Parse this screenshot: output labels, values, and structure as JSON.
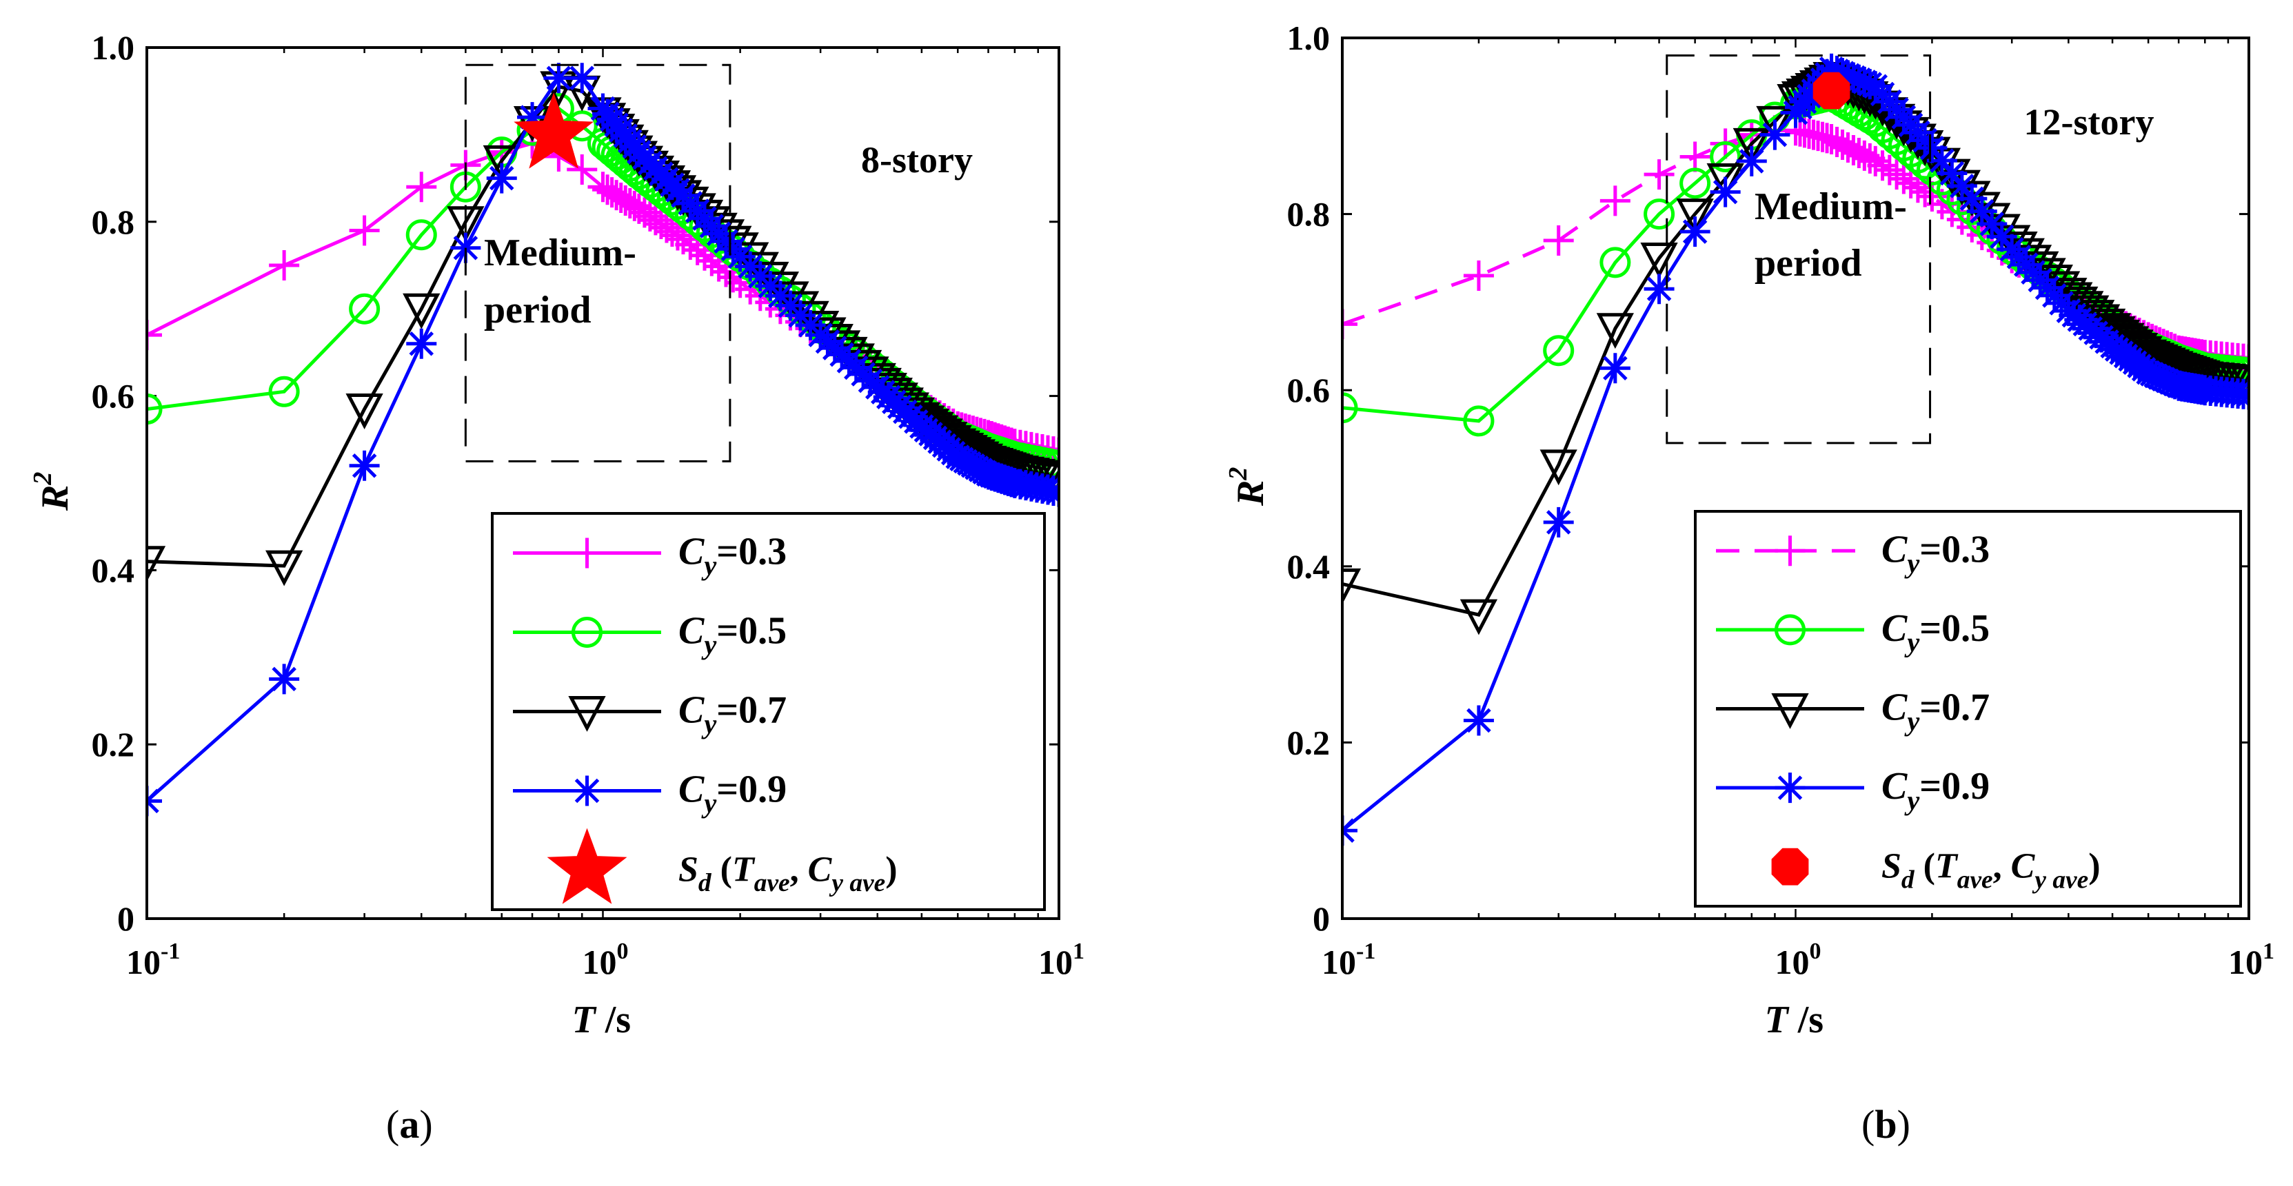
{
  "captions": {
    "a": "a",
    "b": "b"
  },
  "chart_data": [
    {
      "type": "line",
      "panel": "a",
      "annotation": "8-story",
      "region_label_1": "Medium-",
      "region_label_2": "period",
      "region_period_range": [
        0.5,
        1.9
      ],
      "region_r2_range": [
        0.525,
        0.98
      ],
      "xlabel": "T /s",
      "ylabel": "R²",
      "xscale": "log",
      "xlim": [
        0.1,
        10
      ],
      "ylim": [
        0,
        1.0
      ],
      "xticks": [
        0.1,
        1,
        10
      ],
      "yticks": [
        0,
        0.2,
        0.4,
        0.6,
        0.8,
        1.0
      ],
      "ytick_labels": [
        "0",
        "0.2",
        "0.4",
        "0.6",
        "0.8",
        "1.0"
      ],
      "legend_position": "lower-right",
      "series": [
        {
          "name": "Cy=0.3",
          "legend_var": "C",
          "legend_sub": "y",
          "legend_val": "=0.3",
          "color": "#ff00ff",
          "marker": "plus",
          "dash": false,
          "x": [
            0.1,
            0.2,
            0.3,
            0.4,
            0.5,
            0.6,
            0.7,
            0.8,
            0.9,
            1.0,
            1.2,
            1.5,
            2,
            3,
            4,
            5,
            6,
            7,
            8,
            10
          ],
          "y": [
            0.67,
            0.75,
            0.79,
            0.84,
            0.865,
            0.88,
            0.89,
            0.875,
            0.86,
            0.84,
            0.815,
            0.78,
            0.73,
            0.67,
            0.63,
            0.59,
            0.565,
            0.555,
            0.545,
            0.535
          ]
        },
        {
          "name": "Cy=0.5",
          "legend_var": "C",
          "legend_sub": "y",
          "legend_val": "=0.5",
          "color": "#00ff00",
          "marker": "circle",
          "dash": false,
          "x": [
            0.1,
            0.2,
            0.3,
            0.4,
            0.5,
            0.6,
            0.7,
            0.8,
            0.9,
            1.0,
            1.2,
            1.5,
            2,
            3,
            4,
            5,
            6,
            7,
            8,
            10
          ],
          "y": [
            0.585,
            0.605,
            0.7,
            0.785,
            0.84,
            0.88,
            0.905,
            0.93,
            0.91,
            0.89,
            0.855,
            0.815,
            0.76,
            0.68,
            0.63,
            0.585,
            0.555,
            0.54,
            0.53,
            0.52
          ]
        },
        {
          "name": "Cy=0.7",
          "legend_var": "C",
          "legend_sub": "y",
          "legend_val": "=0.7",
          "color": "#000000",
          "marker": "triangle-down",
          "dash": false,
          "x": [
            0.1,
            0.2,
            0.3,
            0.4,
            0.5,
            0.6,
            0.7,
            0.8,
            0.9,
            1.0,
            1.2,
            1.5,
            2,
            3,
            4,
            5,
            6,
            7,
            8,
            10
          ],
          "y": [
            0.41,
            0.405,
            0.585,
            0.7,
            0.8,
            0.87,
            0.915,
            0.955,
            0.95,
            0.925,
            0.875,
            0.83,
            0.77,
            0.68,
            0.62,
            0.575,
            0.545,
            0.525,
            0.515,
            0.505
          ]
        },
        {
          "name": "Cy=0.9",
          "legend_var": "C",
          "legend_sub": "y",
          "legend_val": "=0.9",
          "color": "#0000ff",
          "marker": "asterisk",
          "dash": false,
          "x": [
            0.1,
            0.2,
            0.3,
            0.4,
            0.5,
            0.6,
            0.7,
            0.8,
            0.9,
            1.0,
            1.2,
            1.5,
            2,
            3,
            4,
            5,
            6,
            7,
            8,
            10
          ],
          "y": [
            0.135,
            0.275,
            0.52,
            0.66,
            0.77,
            0.85,
            0.92,
            0.965,
            0.965,
            0.93,
            0.88,
            0.83,
            0.76,
            0.67,
            0.61,
            0.565,
            0.53,
            0.51,
            0.5,
            0.49
          ]
        }
      ],
      "special_point": {
        "legend_var": "S",
        "legend_sub": "d",
        "legend_rest_1": " (",
        "legend_t": "T",
        "legend_t_sub": "ave",
        "legend_sep": ", ",
        "legend_c": "C",
        "legend_c_sub": "y ave",
        "legend_close": ")",
        "marker": "star",
        "color": "#ff0000",
        "x": 0.78,
        "y": 0.9
      }
    },
    {
      "type": "line",
      "panel": "b",
      "annotation": "12-story",
      "region_label_1": "Medium-",
      "region_label_2": "period",
      "region_period_range": [
        0.52,
        1.98
      ],
      "region_r2_range": [
        0.54,
        0.98
      ],
      "xlabel": "T /s",
      "ylabel": "R²",
      "xscale": "log",
      "xlim": [
        0.1,
        10
      ],
      "ylim": [
        0,
        1.0
      ],
      "xticks": [
        0.1,
        1,
        10
      ],
      "yticks": [
        0,
        0.2,
        0.4,
        0.6,
        0.8,
        1.0
      ],
      "ytick_labels": [
        "0",
        "0.2",
        "0.4",
        "0.6",
        "0.8",
        "1.0"
      ],
      "legend_position": "lower-right",
      "series": [
        {
          "name": "Cy=0.3",
          "legend_var": "C",
          "legend_sub": "y",
          "legend_val": "=0.3",
          "color": "#ff00ff",
          "marker": "plus",
          "dash": true,
          "x": [
            0.1,
            0.2,
            0.3,
            0.4,
            0.5,
            0.6,
            0.7,
            0.8,
            0.9,
            1.0,
            1.2,
            1.5,
            2,
            3,
            4,
            5,
            6,
            7,
            8,
            10
          ],
          "y": [
            0.675,
            0.73,
            0.77,
            0.815,
            0.845,
            0.865,
            0.88,
            0.89,
            0.895,
            0.895,
            0.885,
            0.86,
            0.82,
            0.75,
            0.71,
            0.68,
            0.66,
            0.645,
            0.64,
            0.635
          ]
        },
        {
          "name": "Cy=0.5",
          "legend_var": "C",
          "legend_sub": "y",
          "legend_val": "=0.5",
          "color": "#00ff00",
          "marker": "circle",
          "dash": false,
          "x": [
            0.1,
            0.2,
            0.3,
            0.4,
            0.5,
            0.6,
            0.7,
            0.8,
            0.9,
            1.0,
            1.2,
            1.5,
            2,
            3,
            4,
            5,
            6,
            7,
            8,
            10
          ],
          "y": [
            0.58,
            0.565,
            0.645,
            0.745,
            0.8,
            0.835,
            0.865,
            0.89,
            0.91,
            0.925,
            0.935,
            0.905,
            0.85,
            0.76,
            0.71,
            0.675,
            0.65,
            0.635,
            0.625,
            0.62
          ]
        },
        {
          "name": "Cy=0.7",
          "legend_var": "C",
          "legend_sub": "y",
          "legend_val": "=0.7",
          "color": "#000000",
          "marker": "triangle-down",
          "dash": false,
          "x": [
            0.1,
            0.2,
            0.3,
            0.4,
            0.5,
            0.6,
            0.7,
            0.8,
            0.9,
            1.0,
            1.2,
            1.5,
            2,
            3,
            4,
            5,
            6,
            7,
            8,
            10
          ],
          "y": [
            0.38,
            0.345,
            0.515,
            0.67,
            0.75,
            0.8,
            0.84,
            0.88,
            0.905,
            0.93,
            0.955,
            0.93,
            0.87,
            0.77,
            0.71,
            0.67,
            0.64,
            0.625,
            0.615,
            0.61
          ]
        },
        {
          "name": "Cy=0.9",
          "legend_var": "C",
          "legend_sub": "y",
          "legend_val": "=0.9",
          "color": "#0000ff",
          "marker": "asterisk",
          "dash": false,
          "x": [
            0.1,
            0.2,
            0.3,
            0.4,
            0.5,
            0.6,
            0.7,
            0.8,
            0.9,
            1.0,
            1.2,
            1.5,
            2,
            3,
            4,
            5,
            6,
            7,
            8,
            10
          ],
          "y": [
            0.1,
            0.225,
            0.45,
            0.625,
            0.715,
            0.78,
            0.825,
            0.86,
            0.89,
            0.915,
            0.965,
            0.945,
            0.875,
            0.76,
            0.69,
            0.65,
            0.62,
            0.605,
            0.6,
            0.595
          ]
        }
      ],
      "special_point": {
        "legend_var": "S",
        "legend_sub": "d",
        "legend_rest_1": " (",
        "legend_t": "T",
        "legend_t_sub": "ave",
        "legend_sep": ", ",
        "legend_c": "C",
        "legend_c_sub": "y ave",
        "legend_close": ")",
        "marker": "octagon",
        "color": "#ff0000",
        "x": 1.2,
        "y": 0.94
      }
    }
  ]
}
